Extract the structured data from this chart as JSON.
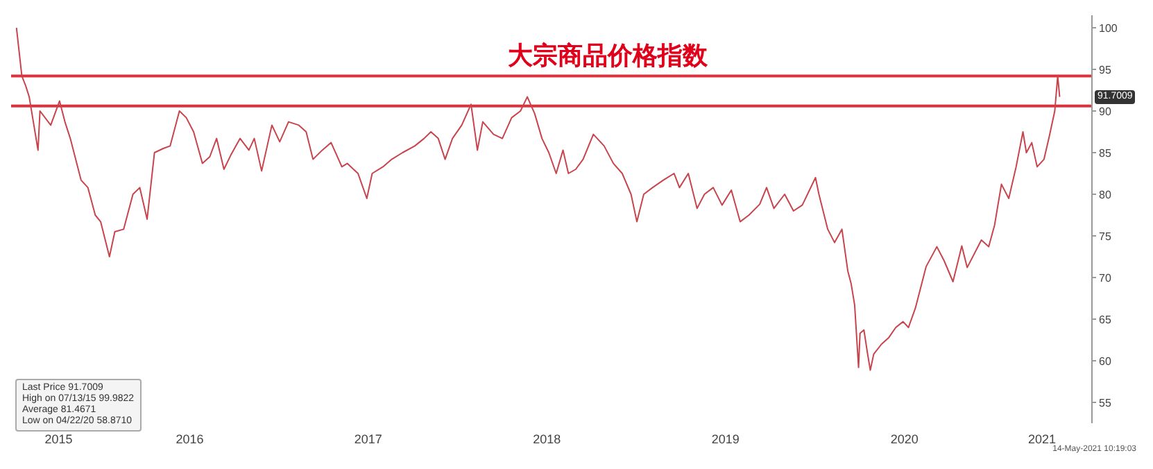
{
  "chart_data": {
    "type": "line",
    "title": "大宗商品价格指数",
    "color": "#c8444c",
    "x": [
      "2015-07-13",
      "2015-07-24",
      "2015-08-01",
      "2015-08-08",
      "2015-08-26",
      "2015-08-30",
      "2015-09-21",
      "2015-10-09",
      "2015-10-20",
      "2015-10-31",
      "2015-11-22",
      "2015-12-06",
      "2015-12-21",
      "2016-01-01",
      "2016-01-19",
      "2016-01-30",
      "2016-02-17",
      "2016-03-07",
      "2016-03-21",
      "2016-04-05",
      "2016-04-20",
      "2016-05-08",
      "2016-05-22",
      "2016-06-10",
      "2016-06-24",
      "2016-07-09",
      "2016-07-27",
      "2016-08-11",
      "2016-08-25",
      "2016-09-09",
      "2016-09-23",
      "2016-10-12",
      "2016-10-30",
      "2016-11-10",
      "2016-11-25",
      "2016-12-16",
      "2017-01-01",
      "2017-01-19",
      "2017-02-09",
      "2017-02-24",
      "2017-03-10",
      "2017-03-29",
      "2017-04-16",
      "2017-05-08",
      "2017-05-19",
      "2017-06-10",
      "2017-06-28",
      "2017-07-09",
      "2017-07-31",
      "2017-08-18",
      "2017-09-09",
      "2017-10-04",
      "2017-10-23",
      "2017-11-06",
      "2017-11-21",
      "2017-12-05",
      "2017-12-20",
      "2018-01-08",
      "2018-01-27",
      "2018-02-09",
      "2018-02-20",
      "2018-03-14",
      "2018-04-01",
      "2018-04-20",
      "2018-05-08",
      "2018-05-22",
      "2018-06-06",
      "2018-06-21",
      "2018-07-05",
      "2018-07-20",
      "2018-08-03",
      "2018-08-14",
      "2018-08-29",
      "2018-09-13",
      "2018-10-04",
      "2018-10-26",
      "2018-11-14",
      "2018-12-02",
      "2018-12-20",
      "2019-01-01",
      "2019-01-15",
      "2019-02-02",
      "2019-02-24",
      "2019-03-18",
      "2019-03-29",
      "2019-04-16",
      "2019-05-04",
      "2019-05-19",
      "2019-06-06",
      "2019-06-24",
      "2019-07-13",
      "2019-07-31",
      "2019-08-18",
      "2019-09-09",
      "2019-09-23",
      "2019-10-08",
      "2019-10-30",
      "2019-11-17",
      "2019-12-05",
      "2020-01-01",
      "2020-01-08",
      "2020-01-26",
      "2020-02-09",
      "2020-02-24",
      "2020-03-07",
      "2020-03-14",
      "2020-03-21",
      "2020-03-29",
      "2020-04-01",
      "2020-04-09",
      "2020-04-16",
      "2020-04-22",
      "2020-04-29",
      "2020-05-15",
      "2020-05-30",
      "2020-06-13",
      "2020-06-28",
      "2020-07-09",
      "2020-07-23",
      "2020-08-14",
      "2020-09-05",
      "2020-09-20",
      "2020-10-08",
      "2020-10-26",
      "2020-11-06",
      "2020-12-05",
      "2020-12-20",
      "2021-01-01",
      "2021-01-15",
      "2021-01-30",
      "2021-02-14",
      "2021-02-28",
      "2021-03-07",
      "2021-03-18",
      "2021-03-29",
      "2021-04-12",
      "2021-04-23",
      "2021-05-04",
      "2021-05-10",
      "2021-05-14"
    ],
    "values": [
      99.9822,
      94.2,
      93,
      91.7,
      85.3,
      90,
      88.3,
      91.2,
      88.7,
      86.7,
      81.7,
      80.8,
      77.5,
      76.7,
      72.5,
      75.5,
      75.8,
      80,
      80.8,
      77,
      85,
      85.5,
      85.8,
      90,
      89.2,
      87.5,
      83.7,
      84.5,
      86.7,
      83,
      84.7,
      86.7,
      85.3,
      86.7,
      82.8,
      88.3,
      86.3,
      88.7,
      88.3,
      87.5,
      84.2,
      85.3,
      86.2,
      83.3,
      83.7,
      82.5,
      79.5,
      82.5,
      83.3,
      84.2,
      85,
      85.8,
      86.7,
      87.5,
      86.7,
      84.2,
      86.7,
      88.3,
      90.8,
      85.3,
      88.7,
      87.2,
      86.7,
      89.2,
      90,
      91.7,
      89.7,
      86.7,
      85,
      82.5,
      85.3,
      82.5,
      83,
      84.2,
      87.2,
      85.8,
      83.7,
      82.5,
      80,
      76.7,
      80,
      80.8,
      81.7,
      82.5,
      80.8,
      82.5,
      78.3,
      80,
      80.8,
      78.7,
      80.5,
      76.7,
      77.5,
      78.8,
      80.8,
      78.3,
      80,
      78,
      78.7,
      82,
      80,
      75.8,
      74.2,
      75.8,
      70.8,
      69.2,
      66.7,
      59.2,
      63.3,
      63.7,
      61,
      58.871,
      60.8,
      62,
      62.8,
      64,
      64.7,
      64,
      66.3,
      71.3,
      73.7,
      72,
      69.5,
      73.8,
      71.2,
      74.5,
      73.7,
      76.3,
      81.2,
      79.5,
      83.3,
      87.5,
      85,
      86.2,
      83.3,
      84.2,
      87,
      90,
      94.2,
      91.7009
    ],
    "xlim": [
      "2015-07-02",
      "2021-07-19"
    ],
    "xticks": [
      {
        "value": "2015-10-07",
        "label": "2015"
      },
      {
        "value": "2016-07-01",
        "label": "2016"
      },
      {
        "value": "2017-07-01",
        "label": "2017"
      },
      {
        "value": "2018-07-01",
        "label": "2018"
      },
      {
        "value": "2019-07-01",
        "label": "2019"
      },
      {
        "value": "2020-07-01",
        "label": "2020"
      },
      {
        "value": "2021-04-08",
        "label": "2021"
      }
    ],
    "ylim": [
      52.5,
      101.5
    ],
    "yticks": [
      55,
      60,
      65,
      70,
      75,
      80,
      85,
      90,
      95,
      100
    ],
    "ref_lines": [
      {
        "axis": "y",
        "value": 94.2,
        "color": "#e0303c"
      },
      {
        "axis": "y",
        "value": 90.6,
        "color": "#e0303c"
      }
    ],
    "annotations": [
      "Last Price 91.7009",
      "High on 07/13/15 99.9822",
      "Average 81.4671",
      "Low on 04/22/20 58.8710",
      "91.7009",
      "14-May-2021 10:19:03"
    ]
  }
}
